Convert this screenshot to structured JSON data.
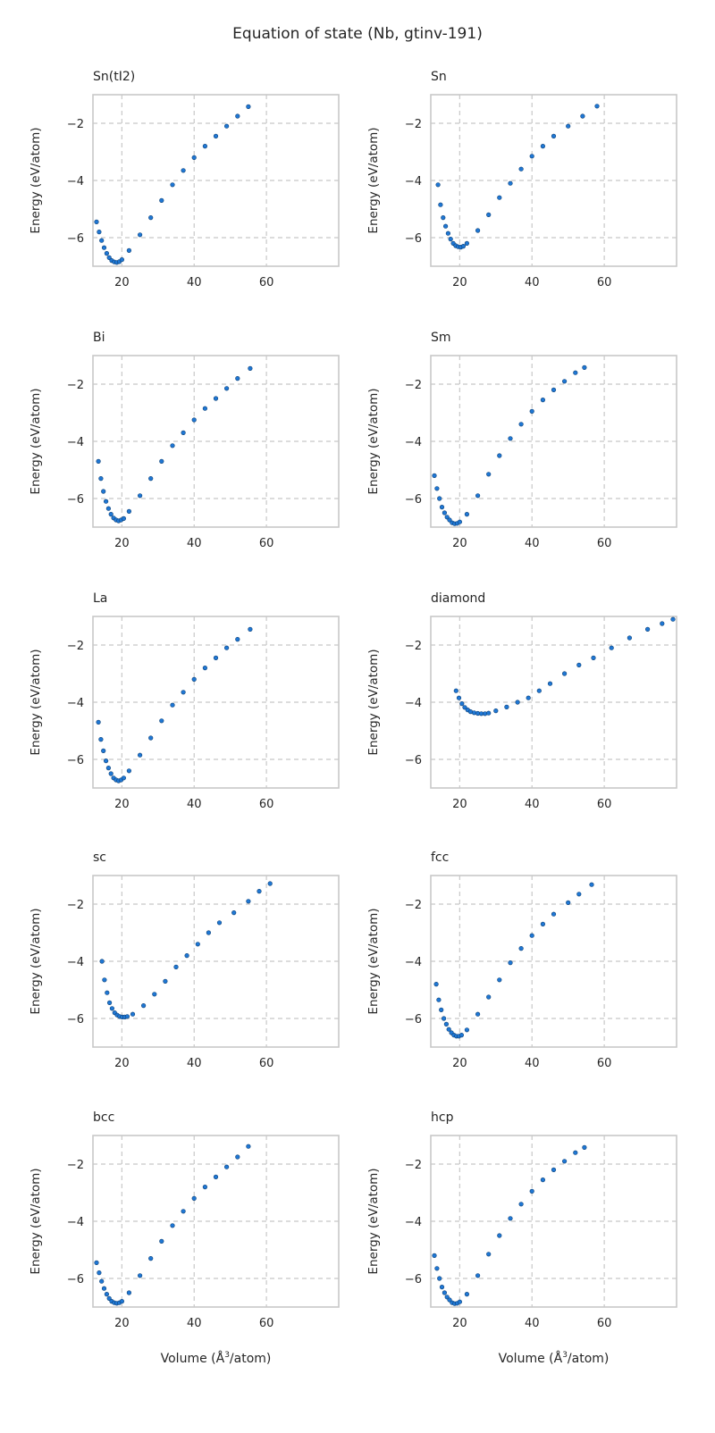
{
  "figure": {
    "title": "Equation of state (Nb, gtinv-191)",
    "ylabel": "Energy (eV/atom)",
    "xlabel_pre": "Volume (",
    "xlabel_unit": "Å",
    "xlabel_sup": "3",
    "xlabel_post": "/atom)"
  },
  "colors": {
    "marker": "#1f77d4",
    "marker_edge": "#0d3f73",
    "grid": "#c8c8c8",
    "frame": "#c8c8c8",
    "text": "#262626"
  },
  "chart_data": [
    {
      "type": "scatter",
      "title": "Sn(tI2)",
      "xlim": [
        12,
        80
      ],
      "ylim": [
        -7,
        -1
      ],
      "xticks": [
        20,
        40,
        60
      ],
      "yticks": [
        -6,
        -4,
        -2
      ],
      "grid": true,
      "points": [
        [
          13.0,
          -5.45
        ],
        [
          13.7,
          -5.8
        ],
        [
          14.4,
          -6.1
        ],
        [
          15.1,
          -6.35
        ],
        [
          15.8,
          -6.55
        ],
        [
          16.5,
          -6.7
        ],
        [
          17.2,
          -6.8
        ],
        [
          17.9,
          -6.85
        ],
        [
          18.6,
          -6.87
        ],
        [
          19.3,
          -6.84
        ],
        [
          20.0,
          -6.77
        ],
        [
          22,
          -6.45
        ],
        [
          25,
          -5.9
        ],
        [
          28,
          -5.3
        ],
        [
          31,
          -4.7
        ],
        [
          34,
          -4.15
        ],
        [
          37,
          -3.65
        ],
        [
          40,
          -3.2
        ],
        [
          43,
          -2.8
        ],
        [
          46,
          -2.45
        ],
        [
          49,
          -2.1
        ],
        [
          52,
          -1.75
        ],
        [
          55,
          -1.42
        ]
      ]
    },
    {
      "type": "scatter",
      "title": "Sn",
      "xlim": [
        12,
        80
      ],
      "ylim": [
        -7,
        -1
      ],
      "xticks": [
        20,
        40,
        60
      ],
      "yticks": [
        -6,
        -4,
        -2
      ],
      "grid": true,
      "points": [
        [
          14.0,
          -4.15
        ],
        [
          14.7,
          -4.85
        ],
        [
          15.4,
          -5.3
        ],
        [
          16.1,
          -5.6
        ],
        [
          16.8,
          -5.85
        ],
        [
          17.5,
          -6.05
        ],
        [
          18.2,
          -6.2
        ],
        [
          18.9,
          -6.28
        ],
        [
          19.6,
          -6.32
        ],
        [
          20.3,
          -6.33
        ],
        [
          21.0,
          -6.3
        ],
        [
          22,
          -6.2
        ],
        [
          25,
          -5.75
        ],
        [
          28,
          -5.2
        ],
        [
          31,
          -4.6
        ],
        [
          34,
          -4.1
        ],
        [
          37,
          -3.6
        ],
        [
          40,
          -3.15
        ],
        [
          43,
          -2.8
        ],
        [
          46,
          -2.45
        ],
        [
          50,
          -2.1
        ],
        [
          54,
          -1.75
        ],
        [
          58,
          -1.4
        ]
      ]
    },
    {
      "type": "scatter",
      "title": "Bi",
      "xlim": [
        12,
        80
      ],
      "ylim": [
        -7,
        -1
      ],
      "xticks": [
        20,
        40,
        60
      ],
      "yticks": [
        -6,
        -4,
        -2
      ],
      "grid": true,
      "points": [
        [
          13.5,
          -4.7
        ],
        [
          14.2,
          -5.3
        ],
        [
          14.9,
          -5.75
        ],
        [
          15.6,
          -6.1
        ],
        [
          16.3,
          -6.35
        ],
        [
          17.0,
          -6.55
        ],
        [
          17.7,
          -6.68
        ],
        [
          18.4,
          -6.75
        ],
        [
          19.1,
          -6.78
        ],
        [
          19.8,
          -6.75
        ],
        [
          20.5,
          -6.7
        ],
        [
          22,
          -6.45
        ],
        [
          25,
          -5.9
        ],
        [
          28,
          -5.3
        ],
        [
          31,
          -4.7
        ],
        [
          34,
          -4.15
        ],
        [
          37,
          -3.7
        ],
        [
          40,
          -3.25
        ],
        [
          43,
          -2.85
        ],
        [
          46,
          -2.5
        ],
        [
          49,
          -2.15
        ],
        [
          52,
          -1.8
        ],
        [
          55.5,
          -1.45
        ]
      ]
    },
    {
      "type": "scatter",
      "title": "Sm",
      "xlim": [
        12,
        80
      ],
      "ylim": [
        -7,
        -1
      ],
      "xticks": [
        20,
        40,
        60
      ],
      "yticks": [
        -6,
        -4,
        -2
      ],
      "grid": true,
      "points": [
        [
          13.0,
          -5.2
        ],
        [
          13.7,
          -5.65
        ],
        [
          14.4,
          -6.0
        ],
        [
          15.1,
          -6.3
        ],
        [
          15.8,
          -6.5
        ],
        [
          16.5,
          -6.65
        ],
        [
          17.2,
          -6.75
        ],
        [
          17.9,
          -6.85
        ],
        [
          18.6,
          -6.88
        ],
        [
          19.3,
          -6.87
        ],
        [
          20.0,
          -6.82
        ],
        [
          22,
          -6.55
        ],
        [
          25,
          -5.9
        ],
        [
          28,
          -5.15
        ],
        [
          31,
          -4.5
        ],
        [
          34,
          -3.9
        ],
        [
          37,
          -3.4
        ],
        [
          40,
          -2.95
        ],
        [
          43,
          -2.55
        ],
        [
          46,
          -2.2
        ],
        [
          49,
          -1.9
        ],
        [
          52,
          -1.6
        ],
        [
          54.5,
          -1.42
        ]
      ]
    },
    {
      "type": "scatter",
      "title": "La",
      "xlim": [
        12,
        80
      ],
      "ylim": [
        -7,
        -1
      ],
      "xticks": [
        20,
        40,
        60
      ],
      "yticks": [
        -6,
        -4,
        -2
      ],
      "grid": true,
      "points": [
        [
          13.5,
          -4.7
        ],
        [
          14.2,
          -5.3
        ],
        [
          14.9,
          -5.7
        ],
        [
          15.6,
          -6.05
        ],
        [
          16.3,
          -6.3
        ],
        [
          17.0,
          -6.5
        ],
        [
          17.7,
          -6.65
        ],
        [
          18.4,
          -6.72
        ],
        [
          19.1,
          -6.75
        ],
        [
          19.8,
          -6.72
        ],
        [
          20.5,
          -6.65
        ],
        [
          22,
          -6.4
        ],
        [
          25,
          -5.85
        ],
        [
          28,
          -5.25
        ],
        [
          31,
          -4.65
        ],
        [
          34,
          -4.1
        ],
        [
          37,
          -3.65
        ],
        [
          40,
          -3.2
        ],
        [
          43,
          -2.8
        ],
        [
          46,
          -2.45
        ],
        [
          49,
          -2.1
        ],
        [
          52,
          -1.8
        ],
        [
          55.5,
          -1.45
        ]
      ]
    },
    {
      "type": "scatter",
      "title": "diamond",
      "xlim": [
        12,
        80
      ],
      "ylim": [
        -7,
        -1
      ],
      "xticks": [
        20,
        40,
        60
      ],
      "yticks": [
        -6,
        -4,
        -2
      ],
      "grid": true,
      "points": [
        [
          19.0,
          -3.6
        ],
        [
          19.8,
          -3.85
        ],
        [
          20.6,
          -4.05
        ],
        [
          21.4,
          -4.18
        ],
        [
          22.2,
          -4.27
        ],
        [
          23.0,
          -4.33
        ],
        [
          24.0,
          -4.37
        ],
        [
          25.0,
          -4.39
        ],
        [
          26.0,
          -4.4
        ],
        [
          27.0,
          -4.4
        ],
        [
          28.0,
          -4.38
        ],
        [
          30,
          -4.3
        ],
        [
          33,
          -4.17
        ],
        [
          36,
          -4.0
        ],
        [
          39,
          -3.85
        ],
        [
          42,
          -3.6
        ],
        [
          45,
          -3.35
        ],
        [
          49,
          -3.0
        ],
        [
          53,
          -2.7
        ],
        [
          57,
          -2.45
        ],
        [
          62,
          -2.1
        ],
        [
          67,
          -1.75
        ],
        [
          72,
          -1.45
        ],
        [
          76,
          -1.25
        ],
        [
          79,
          -1.1
        ]
      ]
    },
    {
      "type": "scatter",
      "title": "sc",
      "xlim": [
        12,
        80
      ],
      "ylim": [
        -7,
        -1
      ],
      "xticks": [
        20,
        40,
        60
      ],
      "yticks": [
        -6,
        -4,
        -2
      ],
      "grid": true,
      "points": [
        [
          14.5,
          -4.0
        ],
        [
          15.2,
          -4.65
        ],
        [
          15.9,
          -5.1
        ],
        [
          16.6,
          -5.45
        ],
        [
          17.3,
          -5.65
        ],
        [
          18.0,
          -5.8
        ],
        [
          18.7,
          -5.88
        ],
        [
          19.4,
          -5.93
        ],
        [
          20.1,
          -5.95
        ],
        [
          20.8,
          -5.95
        ],
        [
          21.5,
          -5.93
        ],
        [
          23,
          -5.85
        ],
        [
          26,
          -5.55
        ],
        [
          29,
          -5.15
        ],
        [
          32,
          -4.7
        ],
        [
          35,
          -4.2
        ],
        [
          38,
          -3.8
        ],
        [
          41,
          -3.4
        ],
        [
          44,
          -3.0
        ],
        [
          47,
          -2.65
        ],
        [
          51,
          -2.3
        ],
        [
          55,
          -1.9
        ],
        [
          58,
          -1.55
        ],
        [
          61,
          -1.28
        ]
      ]
    },
    {
      "type": "scatter",
      "title": "fcc",
      "xlim": [
        12,
        80
      ],
      "ylim": [
        -7,
        -1
      ],
      "xticks": [
        20,
        40,
        60
      ],
      "yticks": [
        -6,
        -4,
        -2
      ],
      "grid": true,
      "points": [
        [
          13.5,
          -4.8
        ],
        [
          14.2,
          -5.35
        ],
        [
          14.9,
          -5.7
        ],
        [
          15.6,
          -6.0
        ],
        [
          16.3,
          -6.2
        ],
        [
          17.0,
          -6.38
        ],
        [
          17.7,
          -6.5
        ],
        [
          18.4,
          -6.58
        ],
        [
          19.1,
          -6.62
        ],
        [
          19.8,
          -6.62
        ],
        [
          20.5,
          -6.58
        ],
        [
          22,
          -6.4
        ],
        [
          25,
          -5.85
        ],
        [
          28,
          -5.25
        ],
        [
          31,
          -4.65
        ],
        [
          34,
          -4.05
        ],
        [
          37,
          -3.55
        ],
        [
          40,
          -3.1
        ],
        [
          43,
          -2.7
        ],
        [
          46,
          -2.35
        ],
        [
          50,
          -1.95
        ],
        [
          53,
          -1.65
        ],
        [
          56.5,
          -1.32
        ]
      ]
    },
    {
      "type": "scatter",
      "title": "bcc",
      "xlim": [
        12,
        80
      ],
      "ylim": [
        -7,
        -1
      ],
      "xticks": [
        20,
        40,
        60
      ],
      "yticks": [
        -6,
        -4,
        -2
      ],
      "grid": true,
      "points": [
        [
          13.0,
          -5.45
        ],
        [
          13.7,
          -5.8
        ],
        [
          14.4,
          -6.1
        ],
        [
          15.1,
          -6.35
        ],
        [
          15.8,
          -6.55
        ],
        [
          16.5,
          -6.7
        ],
        [
          17.2,
          -6.8
        ],
        [
          17.9,
          -6.85
        ],
        [
          18.6,
          -6.87
        ],
        [
          19.3,
          -6.85
        ],
        [
          20.0,
          -6.8
        ],
        [
          22,
          -6.5
        ],
        [
          25,
          -5.9
        ],
        [
          28,
          -5.3
        ],
        [
          31,
          -4.7
        ],
        [
          34,
          -4.15
        ],
        [
          37,
          -3.65
        ],
        [
          40,
          -3.2
        ],
        [
          43,
          -2.8
        ],
        [
          46,
          -2.45
        ],
        [
          49,
          -2.1
        ],
        [
          52,
          -1.75
        ],
        [
          55,
          -1.38
        ]
      ]
    },
    {
      "type": "scatter",
      "title": "hcp",
      "xlim": [
        12,
        80
      ],
      "ylim": [
        -7,
        -1
      ],
      "xticks": [
        20,
        40,
        60
      ],
      "yticks": [
        -6,
        -4,
        -2
      ],
      "grid": true,
      "points": [
        [
          13.0,
          -5.2
        ],
        [
          13.7,
          -5.65
        ],
        [
          14.4,
          -6.0
        ],
        [
          15.1,
          -6.3
        ],
        [
          15.8,
          -6.5
        ],
        [
          16.5,
          -6.65
        ],
        [
          17.2,
          -6.75
        ],
        [
          17.9,
          -6.85
        ],
        [
          18.6,
          -6.88
        ],
        [
          19.3,
          -6.87
        ],
        [
          20.0,
          -6.82
        ],
        [
          22,
          -6.55
        ],
        [
          25,
          -5.9
        ],
        [
          28,
          -5.15
        ],
        [
          31,
          -4.5
        ],
        [
          34,
          -3.9
        ],
        [
          37,
          -3.4
        ],
        [
          40,
          -2.95
        ],
        [
          43,
          -2.55
        ],
        [
          46,
          -2.2
        ],
        [
          49,
          -1.9
        ],
        [
          52,
          -1.6
        ],
        [
          54.5,
          -1.42
        ]
      ]
    }
  ]
}
